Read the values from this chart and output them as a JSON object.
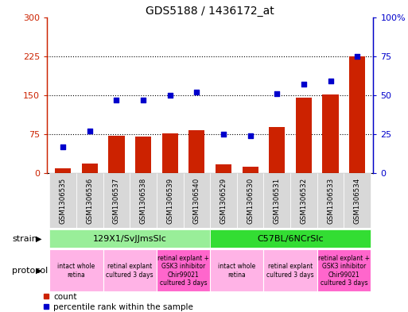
{
  "title": "GDS5188 / 1436172_at",
  "samples": [
    "GSM1306535",
    "GSM1306536",
    "GSM1306537",
    "GSM1306538",
    "GSM1306539",
    "GSM1306540",
    "GSM1306529",
    "GSM1306530",
    "GSM1306531",
    "GSM1306532",
    "GSM1306533",
    "GSM1306534"
  ],
  "counts": [
    10,
    18,
    72,
    70,
    77,
    82,
    17,
    13,
    88,
    145,
    152,
    225
  ],
  "percentiles": [
    17,
    27,
    47,
    47,
    50,
    52,
    25,
    24,
    51,
    57,
    59,
    75
  ],
  "ylim_left": [
    0,
    300
  ],
  "ylim_right": [
    0,
    100
  ],
  "yticks_left": [
    0,
    75,
    150,
    225,
    300
  ],
  "yticks_right": [
    0,
    25,
    50,
    75,
    100
  ],
  "ytick_labels_left": [
    "0",
    "75",
    "150",
    "225",
    "300"
  ],
  "ytick_labels_right": [
    "0",
    "25",
    "50",
    "75",
    "100%"
  ],
  "hlines": [
    75,
    150,
    225
  ],
  "bar_color": "#cc2200",
  "dot_color": "#0000cc",
  "strain_groups": [
    {
      "label": "129X1/SvJJmsSlc",
      "start": 0,
      "end": 6,
      "color": "#99ee99"
    },
    {
      "label": "C57BL/6NCrSlc",
      "start": 6,
      "end": 12,
      "color": "#33dd33"
    }
  ],
  "protocol_groups": [
    {
      "label": "intact whole\nretina",
      "start": 0,
      "end": 2,
      "color": "#ffb3e6"
    },
    {
      "label": "retinal explant\ncultured 3 days",
      "start": 2,
      "end": 4,
      "color": "#ffb3e6"
    },
    {
      "label": "retinal explant +\nGSK3 inhibitor\nChir99021\ncultured 3 days",
      "start": 4,
      "end": 6,
      "color": "#ff66cc"
    },
    {
      "label": "intact whole\nretina",
      "start": 6,
      "end": 8,
      "color": "#ffb3e6"
    },
    {
      "label": "retinal explant\ncultured 3 days",
      "start": 8,
      "end": 10,
      "color": "#ffb3e6"
    },
    {
      "label": "retinal explant +\nGSK3 inhibitor\nChir99021\ncultured 3 days",
      "start": 10,
      "end": 12,
      "color": "#ff66cc"
    }
  ],
  "left_axis_color": "#cc2200",
  "right_axis_color": "#0000cc",
  "xtick_bg": "#d8d8d8",
  "legend_count_color": "#cc2200",
  "legend_pct_color": "#0000cc"
}
